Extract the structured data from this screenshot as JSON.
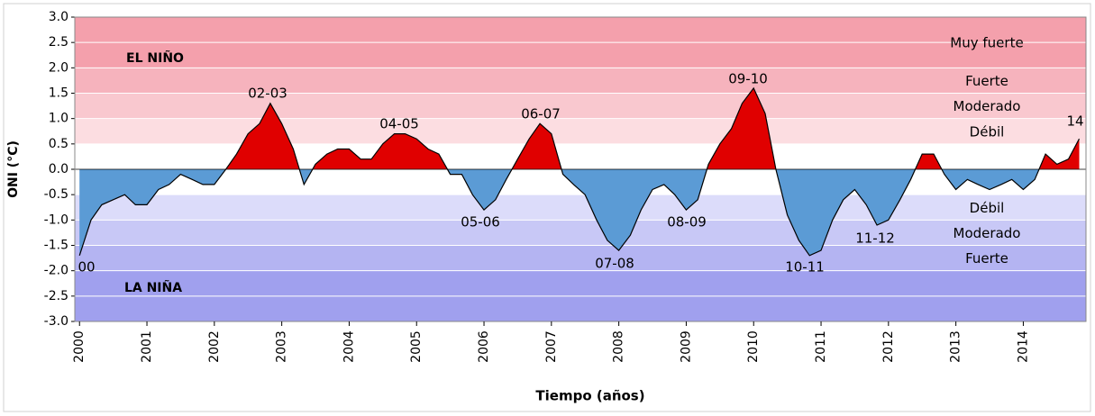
{
  "chart_data": {
    "type": "area",
    "y_label": "ONI (°C)",
    "x_label": "Tiempo (años)",
    "xlim": [
      1999.93,
      2014.93
    ],
    "xticks": [
      2000,
      2001,
      2002,
      2003,
      2004,
      2005,
      2006,
      2007,
      2008,
      2009,
      2010,
      2011,
      2012,
      2013,
      2014
    ],
    "ylim": [
      -3,
      3
    ],
    "yticks": [
      {
        "value": -3,
        "label": "-3.0"
      },
      {
        "value": -2.5,
        "label": "-2.5"
      },
      {
        "value": -2,
        "label": "-2.0"
      },
      {
        "value": -1.5,
        "label": "-1.5"
      },
      {
        "value": -1,
        "label": "-1.0"
      },
      {
        "value": -0.5,
        "label": "-0.5"
      },
      {
        "value": 0,
        "label": "0.0"
      },
      {
        "value": 0.5,
        "label": "0.5"
      },
      {
        "value": 1,
        "label": "1.0"
      },
      {
        "value": 1.5,
        "label": "1.5"
      },
      {
        "value": 2,
        "label": "2.0"
      },
      {
        "value": 2.5,
        "label": "2.5"
      },
      {
        "value": 3,
        "label": "3.0"
      }
    ],
    "positive_color": "#e00000",
    "negative_color": "#5b9bd5",
    "bands": [
      {
        "from": 2,
        "to": 3,
        "color": "#f4a0ac",
        "label": "Muy fuerte"
      },
      {
        "from": 1.5,
        "to": 2,
        "color": "#f6b3bd",
        "label": "Fuerte"
      },
      {
        "from": 1,
        "to": 1.5,
        "color": "#f9c8cf",
        "label": "Moderado"
      },
      {
        "from": 0.5,
        "to": 1,
        "color": "#fcdde1",
        "label": "Débil"
      },
      {
        "from": -1,
        "to": -0.5,
        "color": "#dcdcfa",
        "label": "Débil"
      },
      {
        "from": -1.5,
        "to": -1,
        "color": "#c8c8f6",
        "label": "Moderado"
      },
      {
        "from": -2,
        "to": -1.5,
        "color": "#b4b4f2",
        "label": "Fuerte"
      },
      {
        "from": -3,
        "to": -2,
        "color": "#a0a0ee"
      }
    ],
    "annotations": [
      "EL NIÑO",
      "LA NIÑA",
      "00",
      "02-03",
      "04-05",
      "05-06",
      "06-07",
      "07-08",
      "08-09",
      "09-10",
      "10-11",
      "11-12",
      "14"
    ],
    "x": [
      2000,
      2000.17,
      2000.33,
      2000.5,
      2000.67,
      2000.83,
      2001,
      2001.17,
      2001.33,
      2001.5,
      2001.67,
      2001.83,
      2002,
      2002.17,
      2002.33,
      2002.5,
      2002.67,
      2002.83,
      2003,
      2003.17,
      2003.33,
      2003.5,
      2003.67,
      2003.83,
      2004,
      2004.17,
      2004.33,
      2004.5,
      2004.67,
      2004.83,
      2005,
      2005.17,
      2005.33,
      2005.5,
      2005.67,
      2005.83,
      2006,
      2006.17,
      2006.33,
      2006.5,
      2006.67,
      2006.83,
      2007,
      2007.17,
      2007.33,
      2007.5,
      2007.67,
      2007.83,
      2008,
      2008.17,
      2008.33,
      2008.5,
      2008.67,
      2008.83,
      2009,
      2009.17,
      2009.33,
      2009.5,
      2009.67,
      2009.83,
      2010,
      2010.17,
      2010.33,
      2010.5,
      2010.67,
      2010.83,
      2011,
      2011.17,
      2011.33,
      2011.5,
      2011.67,
      2011.83,
      2012,
      2012.17,
      2012.33,
      2012.5,
      2012.67,
      2012.83,
      2013,
      2013.17,
      2013.33,
      2013.5,
      2013.67,
      2013.83,
      2014,
      2014.17,
      2014.33,
      2014.5,
      2014.67,
      2014.83
    ],
    "values": [
      -1.7,
      -1.0,
      -0.7,
      -0.6,
      -0.5,
      -0.7,
      -0.7,
      -0.4,
      -0.3,
      -0.1,
      -0.2,
      -0.3,
      -0.3,
      0.0,
      0.3,
      0.7,
      0.9,
      1.3,
      0.9,
      0.4,
      -0.3,
      0.1,
      0.3,
      0.4,
      0.4,
      0.2,
      0.2,
      0.5,
      0.7,
      0.7,
      0.6,
      0.4,
      0.3,
      -0.1,
      -0.1,
      -0.5,
      -0.8,
      -0.6,
      -0.2,
      0.2,
      0.6,
      0.9,
      0.7,
      -0.1,
      -0.3,
      -0.5,
      -1.0,
      -1.4,
      -1.6,
      -1.3,
      -0.8,
      -0.4,
      -0.3,
      -0.5,
      -0.8,
      -0.6,
      0.1,
      0.5,
      0.8,
      1.3,
      1.6,
      1.1,
      0.0,
      -0.9,
      -1.4,
      -1.7,
      -1.6,
      -1.0,
      -0.6,
      -0.4,
      -0.7,
      -1.1,
      -1.0,
      -0.6,
      -0.2,
      0.3,
      0.3,
      -0.1,
      -0.4,
      -0.2,
      -0.3,
      -0.4,
      -0.3,
      -0.2,
      -0.4,
      -0.2,
      0.3,
      0.1,
      0.2,
      0.6
    ]
  }
}
